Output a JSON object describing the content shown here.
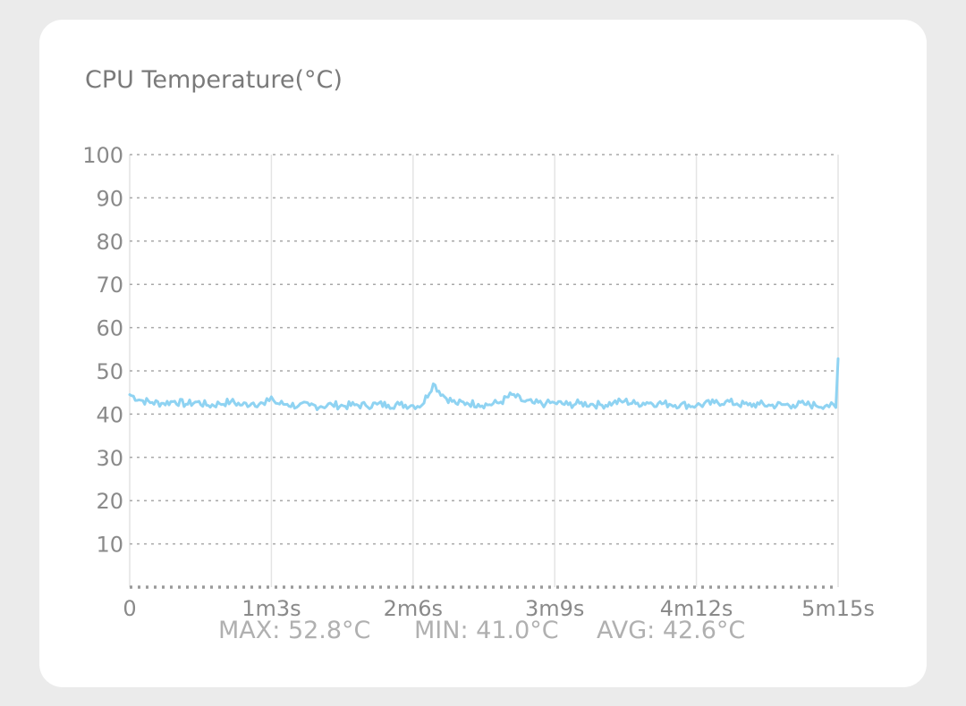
{
  "chart_data": {
    "type": "line",
    "title": "CPU Temperature(°C)",
    "xlabel": "",
    "ylabel": "",
    "x_unit": "seconds",
    "xlim": [
      0,
      315
    ],
    "ylim": [
      0,
      100
    ],
    "y_ticks": [
      10,
      20,
      30,
      40,
      50,
      60,
      70,
      80,
      90,
      100
    ],
    "x_ticks": [
      {
        "value": 0,
        "label": "0"
      },
      {
        "value": 63,
        "label": "1m3s"
      },
      {
        "value": 126,
        "label": "2m6s"
      },
      {
        "value": 189,
        "label": "3m9s"
      },
      {
        "value": 252,
        "label": "4m12s"
      },
      {
        "value": 315,
        "label": "5m15s"
      }
    ],
    "grid": true,
    "legend": "none",
    "series": [
      {
        "color": "#8fd3f2",
        "x": [
          0,
          5,
          10,
          15,
          20,
          25,
          30,
          35,
          40,
          45,
          50,
          55,
          60,
          63,
          65,
          70,
          75,
          80,
          85,
          90,
          95,
          100,
          105,
          110,
          115,
          120,
          126,
          130,
          135,
          140,
          145,
          150,
          155,
          160,
          165,
          170,
          175,
          180,
          185,
          189,
          195,
          200,
          205,
          210,
          215,
          220,
          225,
          230,
          235,
          240,
          245,
          252,
          260,
          265,
          270,
          275,
          280,
          285,
          290,
          295,
          300,
          305,
          310,
          314,
          315
        ],
        "y": [
          44.5,
          43.2,
          42.7,
          42.5,
          43.0,
          42.3,
          42.8,
          42.0,
          42.4,
          42.9,
          42.1,
          42.6,
          42.2,
          44.0,
          42.5,
          42.3,
          41.9,
          42.0,
          41.8,
          42.2,
          41.9,
          42.1,
          42.0,
          42.3,
          42.1,
          42.2,
          42.0,
          42.1,
          47.0,
          44.0,
          42.5,
          42.6,
          42.3,
          42.2,
          42.8,
          44.5,
          43.0,
          42.5,
          42.4,
          42.6,
          42.2,
          42.5,
          42.3,
          42.1,
          42.6,
          43.0,
          42.4,
          42.7,
          42.5,
          42.3,
          42.2,
          42.0,
          42.6,
          42.9,
          42.4,
          42.1,
          42.3,
          42.0,
          42.2,
          42.1,
          42.3,
          42.0,
          42.1,
          41.5,
          52.8
        ]
      }
    ]
  },
  "stats": {
    "max": "MAX: 52.8°C",
    "min": "MIN: 41.0°C",
    "avg": "AVG: 42.6°C"
  }
}
